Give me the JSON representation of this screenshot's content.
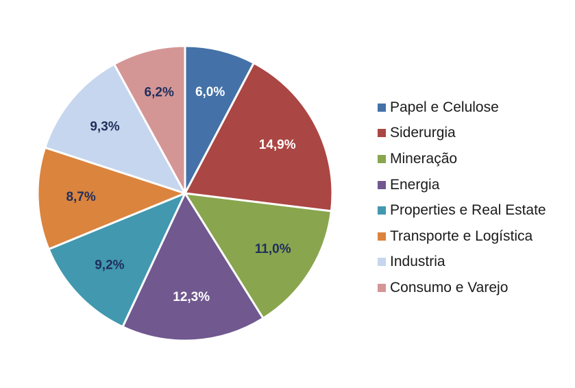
{
  "chart_data": {
    "type": "pie",
    "slices": [
      {
        "label": "Papel e Celulose",
        "value": 6.0,
        "display": "6,0%",
        "color": "#4472A8",
        "label_color": "#ffffff"
      },
      {
        "label": "Siderurgia",
        "value": 14.9,
        "display": "14,9%",
        "color": "#AA4643",
        "label_color": "#ffffff"
      },
      {
        "label": "Mineração",
        "value": 11.0,
        "display": "11,0%",
        "color": "#89A54E",
        "label_color": "#1F2F5C"
      },
      {
        "label": "Energia",
        "value": 12.3,
        "display": "12,3%",
        "color": "#71588F",
        "label_color": "#ffffff"
      },
      {
        "label": "Properties e Real Estate",
        "value": 9.2,
        "display": "9,2%",
        "color": "#4198AF",
        "label_color": "#1F2F5C"
      },
      {
        "label": "Transporte e Logística",
        "value": 8.7,
        "display": "8,7%",
        "color": "#DB843D",
        "label_color": "#1F2F5C"
      },
      {
        "label": "Industria",
        "value": 9.3,
        "display": "9,3%",
        "color": "#C6D6EE",
        "label_color": "#1F2F5C"
      },
      {
        "label": "Consumo e Varejo",
        "value": 6.2,
        "display": "6,2%",
        "color": "#D49695",
        "label_color": "#1F2F5C"
      }
    ],
    "start_angle": "12 o'clock",
    "direction": "clockwise",
    "legend_position": "right"
  }
}
